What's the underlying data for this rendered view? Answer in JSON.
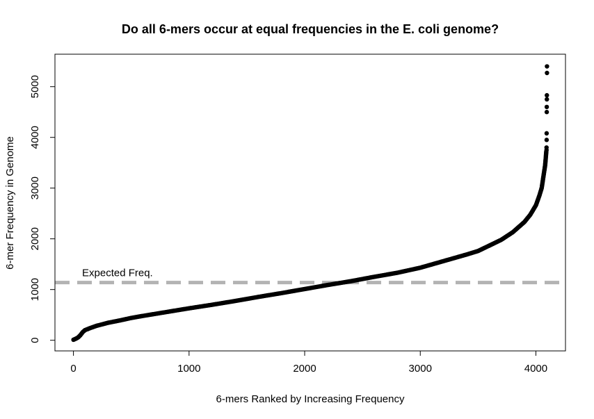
{
  "chart_data": {
    "type": "scatter",
    "title": "Do all 6-mers occur at equal frequencies in the E. coli genome?",
    "xlabel": "6-mers Ranked by Increasing Frequency",
    "ylabel": "6-mer Frequency in Genome",
    "xlim": [
      -160,
      4256
    ],
    "ylim": [
      -210,
      5640
    ],
    "x_ticks": [
      0,
      1000,
      2000,
      3000,
      4000
    ],
    "y_ticks": [
      0,
      1000,
      2000,
      3000,
      4000,
      5000
    ],
    "x_tick_labels": [
      "0",
      "1000",
      "2000",
      "3000",
      "4000"
    ],
    "y_tick_labels": [
      "0",
      "1000",
      "2000",
      "3000",
      "4000",
      "5000"
    ],
    "grid": false,
    "point_color": "#000000",
    "reference_line": {
      "y": 1138,
      "label": "Expected Freq.",
      "color": "#b3b3b3",
      "style": "dashed"
    },
    "curve_points": [
      [
        0,
        10
      ],
      [
        20,
        30
      ],
      [
        40,
        55
      ],
      [
        60,
        100
      ],
      [
        80,
        160
      ],
      [
        100,
        200
      ],
      [
        150,
        245
      ],
      [
        200,
        285
      ],
      [
        300,
        345
      ],
      [
        400,
        390
      ],
      [
        500,
        440
      ],
      [
        600,
        480
      ],
      [
        800,
        555
      ],
      [
        1000,
        630
      ],
      [
        1200,
        700
      ],
      [
        1400,
        775
      ],
      [
        1600,
        855
      ],
      [
        1800,
        930
      ],
      [
        2000,
        1010
      ],
      [
        2200,
        1090
      ],
      [
        2400,
        1165
      ],
      [
        2600,
        1250
      ],
      [
        2800,
        1330
      ],
      [
        3000,
        1430
      ],
      [
        3200,
        1560
      ],
      [
        3400,
        1690
      ],
      [
        3500,
        1760
      ],
      [
        3600,
        1870
      ],
      [
        3700,
        1980
      ],
      [
        3800,
        2130
      ],
      [
        3900,
        2330
      ],
      [
        3950,
        2470
      ],
      [
        4000,
        2660
      ],
      [
        4030,
        2850
      ],
      [
        4050,
        3000
      ],
      [
        4060,
        3150
      ],
      [
        4070,
        3300
      ],
      [
        4080,
        3450
      ],
      [
        4085,
        3580
      ],
      [
        4090,
        3720
      ]
    ],
    "outlier_points": [
      [
        4092,
        3750
      ],
      [
        4092,
        3800
      ],
      [
        4093,
        3950
      ],
      [
        4093,
        4080
      ],
      [
        4094,
        4500
      ],
      [
        4094,
        4600
      ],
      [
        4095,
        4750
      ],
      [
        4095,
        4830
      ],
      [
        4096,
        5270
      ],
      [
        4096,
        5400
      ]
    ]
  }
}
